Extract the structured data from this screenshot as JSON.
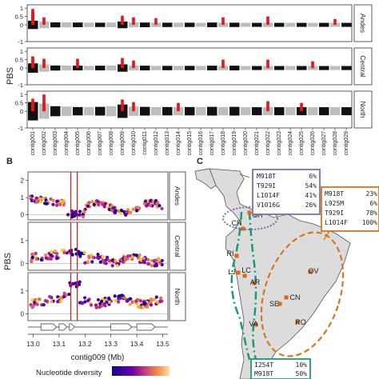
{
  "panel_labels": {
    "a": "",
    "b": "B",
    "c": "C"
  },
  "colors": {
    "outlier": "#e8141a",
    "grey": "#bdbdbd",
    "black": "#111111",
    "purple_box": "#7b6fb4",
    "orange_box": "#d5761e",
    "green_box": "#1a9a7a",
    "land": "#dcdcdc",
    "pop_point": "#d86a1a"
  },
  "chart_data": [
    {
      "type": "scatter",
      "panel": "A",
      "ylabel": "PBS",
      "yticks": [
        "-1",
        "0",
        "0.5",
        "1"
      ],
      "facets": [
        "Andes",
        "Central",
        "North"
      ],
      "contigs": [
        "contig001",
        "contig002",
        "contig003",
        "contig004",
        "contig005",
        "contig006",
        "contig007",
        "contig008",
        "contig009",
        "contig010",
        "contig011",
        "contig012",
        "contig013",
        "contig014",
        "contig015",
        "contig016",
        "contig017",
        "contig018",
        "contig019",
        "contig020",
        "contig021",
        "contig022",
        "contig023",
        "contig024",
        "contig025",
        "contig026",
        "contig027",
        "contig028",
        "contig029"
      ],
      "band_height": [
        [
          0.25,
          0.2,
          0.15,
          0.15,
          0.14,
          0.13,
          0.13,
          0.14,
          0.2,
          0.15,
          0.14,
          0.13,
          0.13,
          0.13,
          0.13,
          0.12,
          0.14,
          0.13,
          0.13,
          0.12,
          0.12,
          0.13,
          0.12,
          0.12,
          0.12,
          0.12,
          0.12,
          0.12,
          0.12
        ],
        [
          0.28,
          0.22,
          0.15,
          0.15,
          0.14,
          0.13,
          0.14,
          0.15,
          0.22,
          0.15,
          0.14,
          0.13,
          0.13,
          0.13,
          0.13,
          0.13,
          0.14,
          0.13,
          0.14,
          0.12,
          0.12,
          0.12,
          0.12,
          0.12,
          0.12,
          0.12,
          0.12,
          0.12,
          0.12
        ],
        [
          0.55,
          0.45,
          0.3,
          0.28,
          0.25,
          0.25,
          0.26,
          0.3,
          0.4,
          0.28,
          0.26,
          0.25,
          0.25,
          0.25,
          0.25,
          0.25,
          0.26,
          0.25,
          0.26,
          0.24,
          0.24,
          0.24,
          0.24,
          0.24,
          0.24,
          0.24,
          0.24,
          0.24,
          0.24
        ]
      ],
      "outliers": [
        [
          [
            0,
            0.95
          ],
          [
            0,
            0.75
          ],
          [
            0,
            0.6
          ],
          [
            1,
            0.45
          ],
          [
            8,
            0.55
          ],
          [
            9,
            0.45
          ],
          [
            11,
            0.4
          ],
          [
            17,
            0.45
          ],
          [
            21,
            0.5
          ],
          [
            27,
            0.35
          ]
        ],
        [
          [
            0,
            0.7
          ],
          [
            0,
            0.6
          ],
          [
            1,
            0.55
          ],
          [
            4,
            0.55
          ],
          [
            8,
            0.6
          ],
          [
            9,
            0.45
          ],
          [
            17,
            0.5
          ],
          [
            21,
            0.5
          ],
          [
            25,
            0.4
          ]
        ],
        [
          [
            0,
            0.75
          ],
          [
            0,
            0.55
          ],
          [
            1,
            1.0
          ],
          [
            1,
            0.55
          ],
          [
            8,
            0.7
          ],
          [
            9,
            0.55
          ],
          [
            13,
            0.5
          ],
          [
            21,
            0.6
          ],
          [
            24,
            0.5
          ]
        ]
      ]
    },
    {
      "type": "scatter",
      "panel": "B",
      "ylabel": "PBS",
      "xlabel": "contig009 (Mb)",
      "xticks": [
        "13.0",
        "13.1",
        "13.2",
        "13.3",
        "13.4",
        "13.5"
      ],
      "yticks_andes": [
        "0",
        "1",
        "2"
      ],
      "yticks": [
        "0",
        "1"
      ],
      "xlim": [
        12.98,
        13.52
      ],
      "facets": [
        "Andes",
        "Central",
        "North"
      ],
      "ylim": [
        [
          -0.3,
          2.5
        ],
        [
          -0.3,
          1.8
        ],
        [
          -0.3,
          1.8
        ]
      ],
      "highlight_x": [
        13.145,
        13.17
      ],
      "legend_title": "Nucleotide diversity"
    }
  ],
  "map": {
    "sites": [
      {
        "code": "CR"
      },
      {
        "code": "CH"
      },
      {
        "code": "RI"
      },
      {
        "code": "LJ"
      },
      {
        "code": "LC"
      },
      {
        "code": "AR"
      },
      {
        "code": "OV"
      },
      {
        "code": "SE"
      },
      {
        "code": "CN"
      },
      {
        "code": "RO"
      },
      {
        "code": "VA"
      }
    ],
    "box_purple": [
      {
        "mut": "M918T",
        "freq": "6%"
      },
      {
        "mut": "T929I",
        "freq": "54%"
      },
      {
        "mut": "L1014F",
        "freq": "41%"
      },
      {
        "mut": "V1016G",
        "freq": "26%"
      }
    ],
    "box_orange": [
      {
        "mut": "M918T",
        "freq": "23%"
      },
      {
        "mut": "L925M",
        "freq": "6%"
      },
      {
        "mut": "T929I",
        "freq": "78%"
      },
      {
        "mut": "L1014F",
        "freq": "100%"
      }
    ],
    "box_green": [
      {
        "mut": "I254T",
        "freq": "10%"
      },
      {
        "mut": "M918T",
        "freq": "50%"
      }
    ]
  }
}
